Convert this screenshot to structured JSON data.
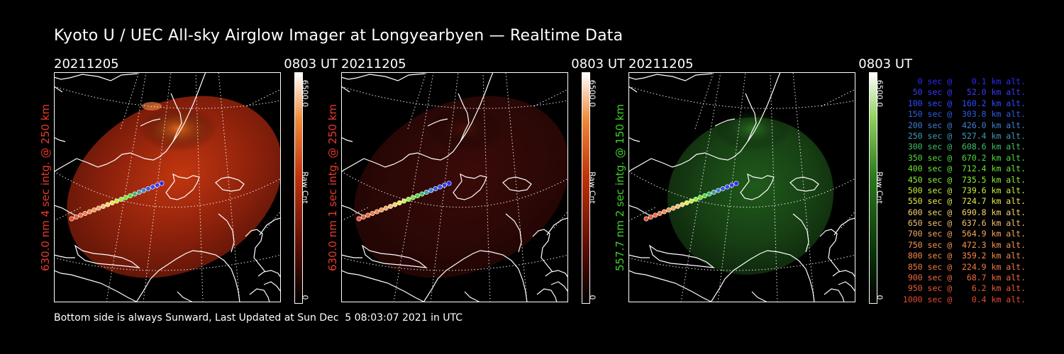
{
  "title": "Kyoto U / UEC All-sky Airglow Imager at Longyearbyen — Realtime Data",
  "footer": "Bottom side is always Sunward, Last Updated at Sun Dec  5 08:03:07 2021 in UTC",
  "panels": [
    {
      "date": "20211205",
      "time": "0803 UT",
      "ylabel": "630.0 nm 4 sec intg. @ 250 km",
      "label_color": "#e83a2a",
      "cb_max": "6500.0",
      "cb_min": "0",
      "cb_unit": "Raw Cnt",
      "colormap": "red",
      "brightness": "high"
    },
    {
      "date": "20211205",
      "time": "0803 UT",
      "ylabel": "630.0 nm 1 sec intg. @ 250 km",
      "label_color": "#e83a2a",
      "cb_max": "6500.0",
      "cb_min": "0",
      "cb_unit": "Raw Cnt",
      "colormap": "red",
      "brightness": "low"
    },
    {
      "date": "20211205",
      "time": "0803 UT",
      "ylabel": "557.7 nm 2 sec intg. @ 150 km",
      "label_color": "#3fcf2c",
      "cb_max": "6500.0",
      "cb_min": "0",
      "cb_unit": "Raw Cnt",
      "colormap": "green",
      "brightness": "medium"
    }
  ],
  "legend": [
    {
      "text": "0 sec @    0.1 km alt.",
      "color": "#2a2aff"
    },
    {
      "text": "50 sec @   52.0 km alt.",
      "color": "#3a3aff"
    },
    {
      "text": "100 sec @  160.2 km alt.",
      "color": "#2f4cff"
    },
    {
      "text": "150 sec @  303.8 km alt.",
      "color": "#2e5ce8"
    },
    {
      "text": "200 sec @  426.0 km alt.",
      "color": "#3f7fd6"
    },
    {
      "text": "250 sec @  527.4 km alt.",
      "color": "#3d9db4"
    },
    {
      "text": "300 sec @  608.6 km alt.",
      "color": "#3ec06a"
    },
    {
      "text": "350 sec @  670.2 km alt.",
      "color": "#4fdc3a"
    },
    {
      "text": "400 sec @  712.4 km alt.",
      "color": "#6ae830"
    },
    {
      "text": "450 sec @  735.5 km alt.",
      "color": "#8ff036"
    },
    {
      "text": "500 sec @  739.6 km alt.",
      "color": "#c5f03a"
    },
    {
      "text": "550 sec @  724.7 km alt.",
      "color": "#ecec4a"
    },
    {
      "text": "600 sec @  690.8 km alt.",
      "color": "#f5d86a"
    },
    {
      "text": "650 sec @  637.6 km alt.",
      "color": "#f5c070"
    },
    {
      "text": "700 sec @  564.9 km alt.",
      "color": "#f5a860"
    },
    {
      "text": "750 sec @  472.3 km alt.",
      "color": "#f59850"
    },
    {
      "text": "800 sec @  359.2 km alt.",
      "color": "#f58a48"
    },
    {
      "text": "850 sec @  224.9 km alt.",
      "color": "#f27a45"
    },
    {
      "text": "900 sec @   68.7 km alt.",
      "color": "#ee6a40"
    },
    {
      "text": "950 sec @    6.2 km alt.",
      "color": "#eb5a38"
    },
    {
      "text": "1000 sec @    0.4 km alt.",
      "color": "#e84a30"
    }
  ]
}
